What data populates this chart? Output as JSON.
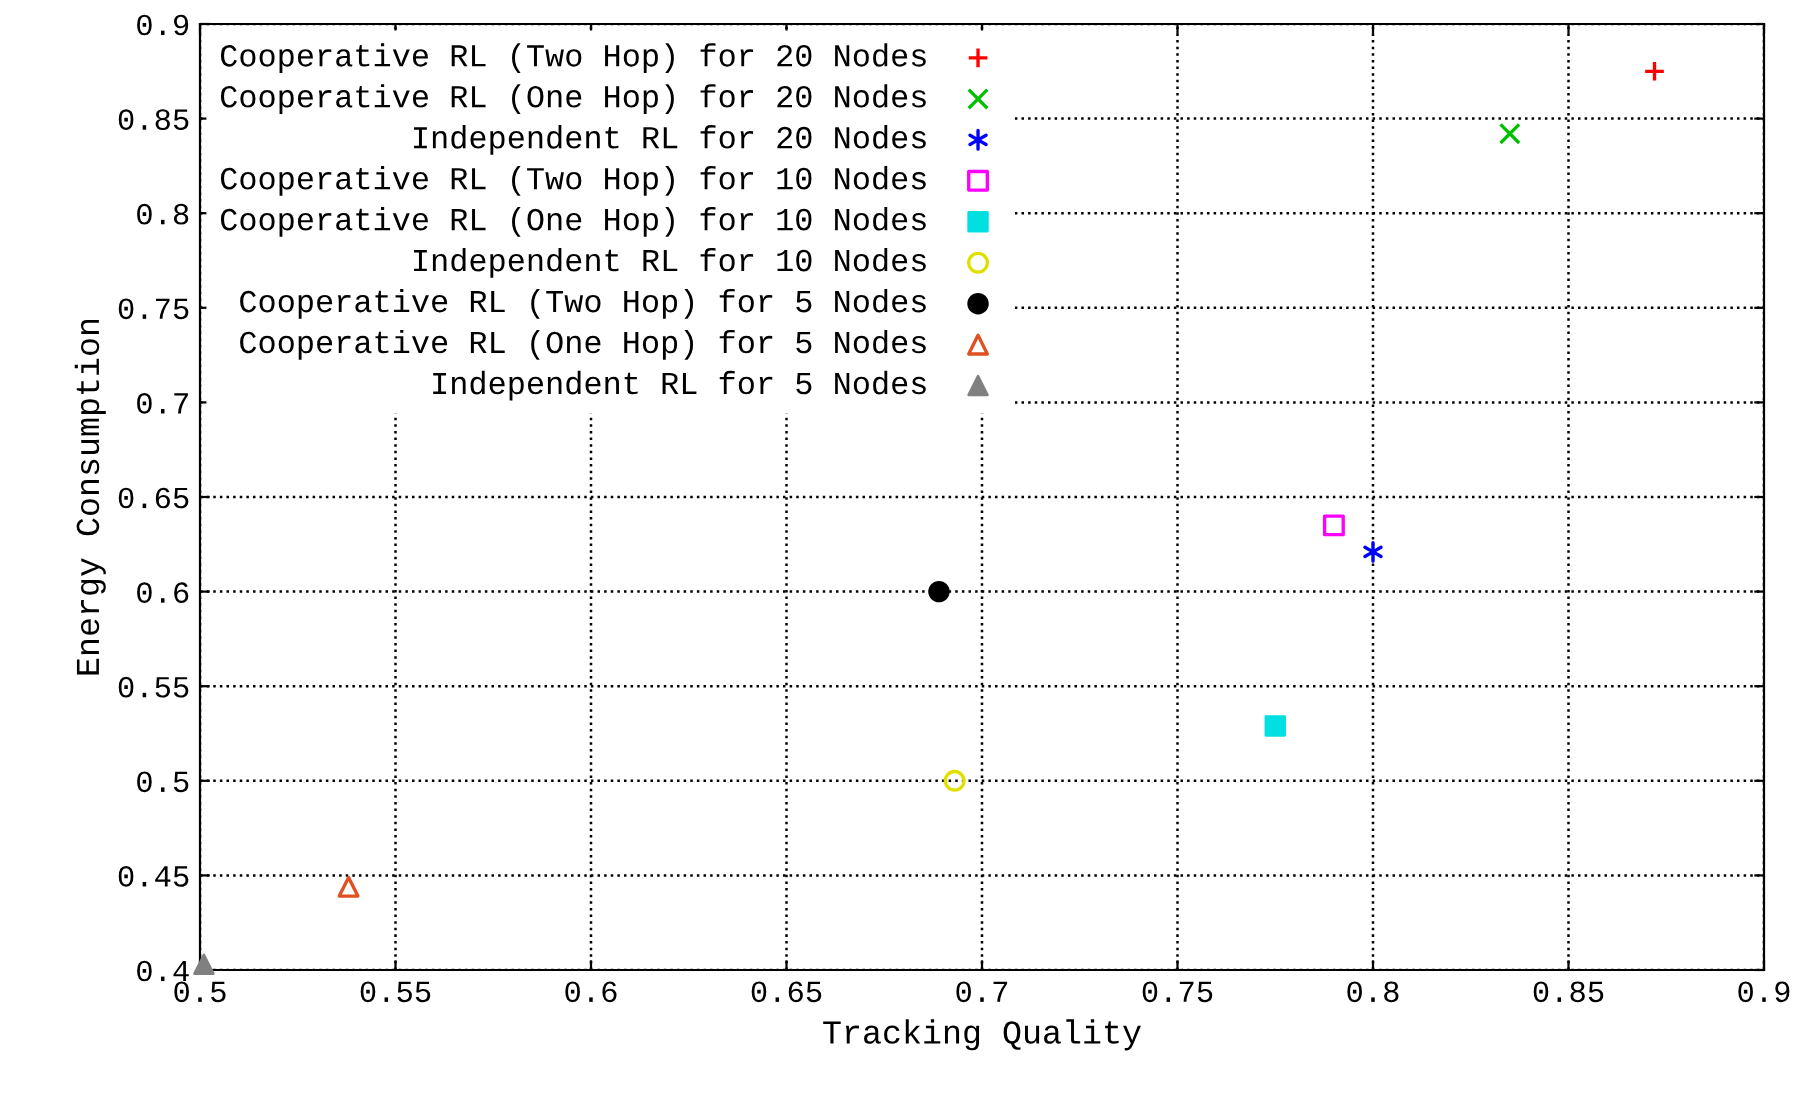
{
  "chart_data": {
    "type": "scatter",
    "xlabel": "Tracking Quality",
    "ylabel": "Energy Consumption",
    "xlim": [
      0.5,
      0.9
    ],
    "xticks": [
      0.5,
      0.55,
      0.6,
      0.65,
      0.7,
      0.75,
      0.8,
      0.85,
      0.9
    ],
    "ylim": [
      0.4,
      0.9
    ],
    "yticks": [
      0.4,
      0.45,
      0.5,
      0.55,
      0.6,
      0.65,
      0.7,
      0.75,
      0.8,
      0.85,
      0.9
    ],
    "grid": true,
    "line_style": "dotted",
    "legend": "top left",
    "series": [
      {
        "name": "Cooperative RL (Two Hop) for 20 Nodes",
        "color": "#ff0000",
        "marker": "plus",
        "x": [
          0.872
        ],
        "values": [
          0.875
        ]
      },
      {
        "name": "Cooperative RL (One Hop) for 20 Nodes",
        "color": "#00c000",
        "marker": "cross",
        "x": [
          0.835
        ],
        "values": [
          0.842
        ]
      },
      {
        "name": "Independent RL for 20 Nodes",
        "color": "#0000ff",
        "x": [
          0.8
        ],
        "values": [
          0.621
        ]
      },
      {
        "name": "Cooperative RL (Two Hop) for 10 Nodes",
        "color": "#ff00ff",
        "marker": "square_open",
        "x": [
          0.79
        ],
        "values": [
          0.635
        ]
      },
      {
        "name": "Cooperative RL (One Hop) for 10 Nodes",
        "color": "#00e0e0",
        "marker": "square",
        "x": [
          0.775
        ],
        "values": [
          0.529
        ]
      },
      {
        "name": "Independent RL for 10 Nodes",
        "color": "#e0e000",
        "marker": "circle_open",
        "x": [
          0.693
        ],
        "values": [
          0.5
        ]
      },
      {
        "name": "Cooperative RL (Two Hop) for 5 Nodes",
        "color": "#000000",
        "marker": "circle",
        "x": [
          0.689
        ],
        "values": [
          0.6
        ]
      },
      {
        "name": "Cooperative RL (One Hop) for 5 Nodes",
        "color": "#e05020",
        "marker": "triangle_open",
        "x": [
          0.538
        ],
        "values": [
          0.444
        ]
      },
      {
        "name": "Independent RL for 5 Nodes",
        "color": "#808080",
        "marker": "triangle",
        "x": [
          0.501
        ],
        "values": [
          0.403
        ]
      }
    ]
  }
}
